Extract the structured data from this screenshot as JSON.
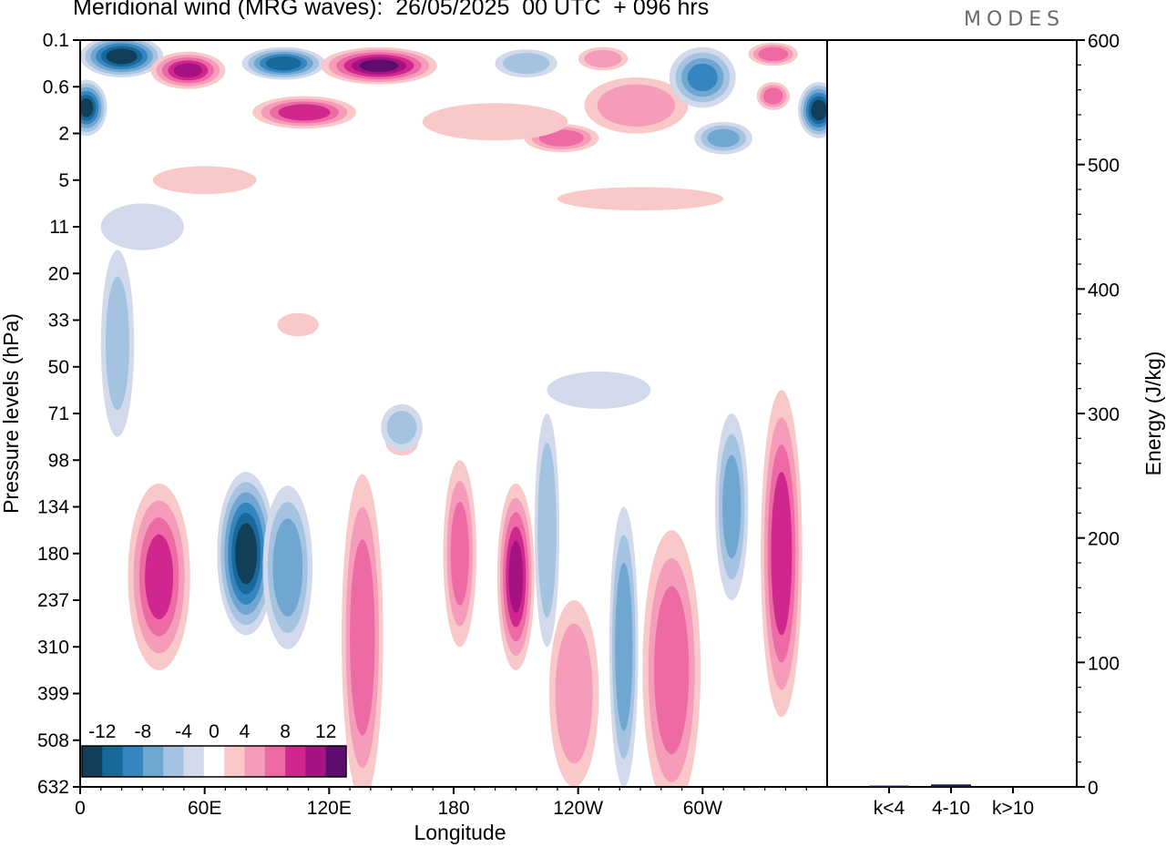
{
  "header": {
    "title": "Meridional wind (MRG waves):  26/05/2025  00 UTC  + 096 hrs",
    "brand": "MODES"
  },
  "chart_data": [
    {
      "type": "heatmap",
      "title": "Meridional wind (MRG waves):  26/05/2025  00 UTC  + 096 hrs",
      "xlabel": "Longitude",
      "ylabel": "Pressure levels (hPa)",
      "x_ticks": [
        "0",
        "60E",
        "120E",
        "180",
        "120W",
        "60W"
      ],
      "x_tick_deg": [
        0,
        60,
        120,
        180,
        240,
        300
      ],
      "xlim": [
        0,
        360
      ],
      "y_ticks": [
        "0.1",
        "0.6",
        "2",
        "5",
        "11",
        "20",
        "33",
        "50",
        "71",
        "98",
        "134",
        "180",
        "237",
        "310",
        "399",
        "508",
        "632"
      ],
      "y_scale": "categorical-levels",
      "colorbar": {
        "tick_labels": [
          "-12",
          "-8",
          "-4",
          "0",
          "4",
          "8",
          "12"
        ],
        "levels": [
          -14,
          -12,
          -10,
          -8,
          -6,
          -4,
          -2,
          2,
          4,
          6,
          8,
          10,
          12,
          14
        ],
        "colors": [
          "#113f5a",
          "#17699a",
          "#3585c0",
          "#6fa7d1",
          "#a3c3e1",
          "#d2d9ea",
          "#ffffff",
          "#f9c8c8",
          "#f49cba",
          "#ee6aa5",
          "#d0278f",
          "#a51282",
          "#5e0c6d"
        ]
      },
      "field": {
        "features": [
          {
            "lon": 20,
            "level": 0.35,
            "value": -14,
            "width_lon": 20,
            "height_levels": 0.9
          },
          {
            "lon": 3,
            "level": 1.45,
            "value": -13,
            "width_lon": 10,
            "height_levels": 1.2
          },
          {
            "lon": 52,
            "level": 0.65,
            "value": 11,
            "width_lon": 18,
            "height_levels": 0.8
          },
          {
            "lon": 98,
            "level": 0.5,
            "value": -12,
            "width_lon": 20,
            "height_levels": 0.7
          },
          {
            "lon": 144,
            "level": 0.55,
            "value": 13,
            "width_lon": 28,
            "height_levels": 0.8
          },
          {
            "lon": 108,
            "level": 1.55,
            "value": 10,
            "width_lon": 25,
            "height_levels": 0.7
          },
          {
            "lon": 215,
            "level": 0.5,
            "value": -6,
            "width_lon": 15,
            "height_levels": 0.6
          },
          {
            "lon": 252,
            "level": 0.4,
            "value": 6,
            "width_lon": 12,
            "height_levels": 0.5
          },
          {
            "lon": 268,
            "level": 1.4,
            "value": 6,
            "width_lon": 25,
            "height_levels": 1.2
          },
          {
            "lon": 232,
            "level": 2.1,
            "value": 8,
            "width_lon": 18,
            "height_levels": 0.6
          },
          {
            "lon": 300,
            "level": 0.8,
            "value": -9,
            "width_lon": 16,
            "height_levels": 1.3
          },
          {
            "lon": 310,
            "level": 2.1,
            "value": -7,
            "width_lon": 14,
            "height_levels": 0.7
          },
          {
            "lon": 334,
            "level": 0.3,
            "value": 8,
            "width_lon": 12,
            "height_levels": 0.5
          },
          {
            "lon": 334,
            "level": 1.2,
            "value": 8,
            "width_lon": 8,
            "height_levels": 0.6
          },
          {
            "lon": 356,
            "level": 1.5,
            "value": -14,
            "width_lon": 10,
            "height_levels": 1.2
          },
          {
            "lon": 200,
            "level": 1.75,
            "value": 4,
            "width_lon": 35,
            "height_levels": 0.8
          },
          {
            "lon": 270,
            "level": 3.4,
            "value": 3,
            "width_lon": 40,
            "height_levels": 0.5
          },
          {
            "lon": 60,
            "level": 3.0,
            "value": 3,
            "width_lon": 25,
            "height_levels": 0.6
          },
          {
            "lon": 30,
            "level": 4.0,
            "value": -4,
            "width_lon": 20,
            "height_levels": 1.0
          },
          {
            "lon": 18,
            "level": 6.5,
            "value": -5,
            "width_lon": 8,
            "height_levels": 4.0
          },
          {
            "lon": 38,
            "level": 11.5,
            "value": 9,
            "width_lon": 15,
            "height_levels": 4.0
          },
          {
            "lon": 80,
            "level": 11.0,
            "value": -14,
            "width_lon": 14,
            "height_levels": 3.5
          },
          {
            "lon": 100,
            "level": 11.3,
            "value": -8,
            "width_lon": 12,
            "height_levels": 3.5
          },
          {
            "lon": 136,
            "level": 12.8,
            "value": 8,
            "width_lon": 10,
            "height_levels": 7.0
          },
          {
            "lon": 183,
            "level": 11.0,
            "value": 7,
            "width_lon": 8,
            "height_levels": 4.0
          },
          {
            "lon": 210,
            "level": 11.5,
            "value": 11,
            "width_lon": 9,
            "height_levels": 4.0
          },
          {
            "lon": 225,
            "level": 10.5,
            "value": -6,
            "width_lon": 6,
            "height_levels": 5.0
          },
          {
            "lon": 238,
            "level": 14.0,
            "value": 6,
            "width_lon": 12,
            "height_levels": 4.0
          },
          {
            "lon": 262,
            "level": 13.0,
            "value": -8,
            "width_lon": 7,
            "height_levels": 6.0
          },
          {
            "lon": 285,
            "level": 13.5,
            "value": 8,
            "width_lon": 14,
            "height_levels": 6.0
          },
          {
            "lon": 314,
            "level": 10.0,
            "value": -7,
            "width_lon": 8,
            "height_levels": 4.0
          },
          {
            "lon": 338,
            "level": 11.0,
            "value": 10,
            "width_lon": 10,
            "height_levels": 7.0
          },
          {
            "lon": 155,
            "level": 8.6,
            "value": 4,
            "width_lon": 8,
            "height_levels": 0.6
          },
          {
            "lon": 155,
            "level": 8.3,
            "value": -5,
            "width_lon": 10,
            "height_levels": 1.0
          },
          {
            "lon": 105,
            "level": 6.1,
            "value": 3,
            "width_lon": 10,
            "height_levels": 0.5
          },
          {
            "lon": 250,
            "level": 7.5,
            "value": -3,
            "width_lon": 25,
            "height_levels": 0.8
          }
        ]
      }
    },
    {
      "type": "bar",
      "ylabel": "Energy (J/kg)",
      "categories": [
        "k<4",
        "4-10",
        "k>10"
      ],
      "values": [
        1,
        2,
        0
      ],
      "ylim": [
        0,
        600
      ],
      "y_ticks": [
        0,
        100,
        200,
        300,
        400,
        500,
        600
      ]
    }
  ]
}
